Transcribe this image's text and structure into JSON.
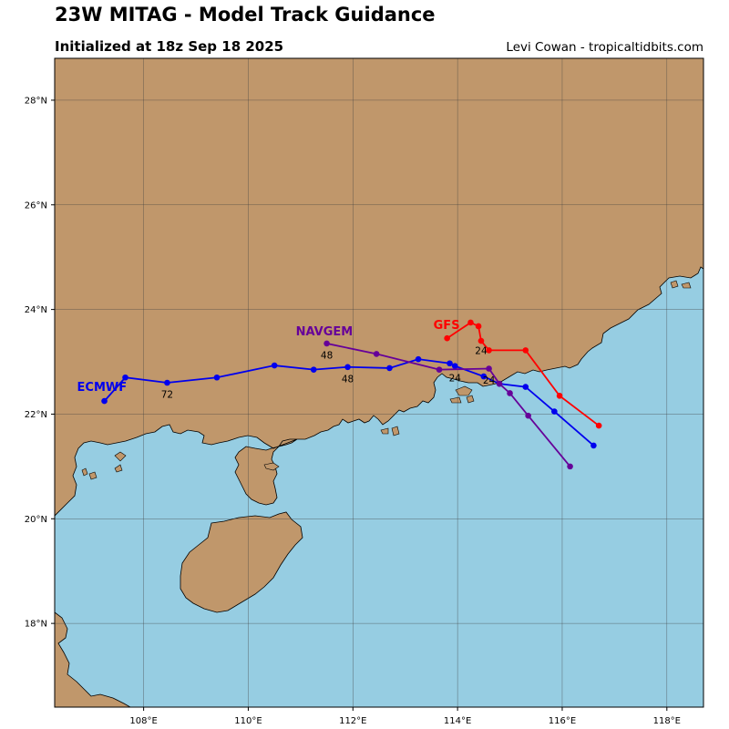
{
  "header": {
    "title": "23W MITAG - Model Track Guidance",
    "subtitle": "Initialized at 18z Sep 18 2025",
    "credit": "Levi Cowan - tropicaltidbits.com"
  },
  "map": {
    "lon_range": [
      106.3,
      118.7
    ],
    "lat_range": [
      16.4,
      28.8
    ],
    "lon_ticks": [
      {
        "value": 108,
        "label": "108°E"
      },
      {
        "value": 110,
        "label": "110°E"
      },
      {
        "value": 112,
        "label": "112°E"
      },
      {
        "value": 114,
        "label": "114°E"
      },
      {
        "value": 116,
        "label": "116°E"
      },
      {
        "value": 118,
        "label": "118°E"
      }
    ],
    "lat_ticks": [
      {
        "value": 18,
        "label": "18°N"
      },
      {
        "value": 20,
        "label": "20°N"
      },
      {
        "value": 22,
        "label": "22°N"
      },
      {
        "value": 24,
        "label": "24°N"
      },
      {
        "value": 26,
        "label": "26°N"
      },
      {
        "value": 28,
        "label": "28°N"
      }
    ],
    "colors": {
      "land": "#c0976b",
      "ocean": "#96cde2",
      "coast": "#000000",
      "grid": "#404040"
    }
  },
  "tracks": [
    {
      "model": "GFS",
      "color": "#ff0000",
      "points": [
        [
          116.7,
          21.78
        ],
        [
          115.95,
          22.35
        ],
        [
          115.3,
          23.22
        ],
        [
          114.6,
          23.22
        ],
        [
          114.45,
          23.4
        ],
        [
          114.4,
          23.68
        ],
        [
          114.25,
          23.75
        ],
        [
          113.8,
          23.45
        ]
      ],
      "hour_labels": [
        {
          "hour": "24",
          "lon": 114.45,
          "lat": 23.22
        }
      ]
    },
    {
      "model": "ECMWF",
      "color": "#0000ee",
      "points": [
        [
          116.6,
          21.4
        ],
        [
          115.85,
          22.05
        ],
        [
          115.3,
          22.52
        ],
        [
          114.8,
          22.58
        ],
        [
          114.5,
          22.72
        ],
        [
          113.95,
          22.92
        ],
        [
          113.85,
          22.97
        ],
        [
          113.25,
          23.05
        ],
        [
          112.7,
          22.88
        ],
        [
          111.9,
          22.9
        ],
        [
          111.25,
          22.85
        ],
        [
          110.5,
          22.93
        ],
        [
          109.4,
          22.7
        ],
        [
          108.45,
          22.6
        ],
        [
          107.65,
          22.7
        ],
        [
          107.25,
          22.25
        ]
      ],
      "hour_labels": [
        {
          "hour": "24",
          "lon": 113.95,
          "lat": 22.7
        },
        {
          "hour": "48",
          "lon": 111.9,
          "lat": 22.68
        },
        {
          "hour": "72",
          "lon": 108.45,
          "lat": 22.38
        }
      ]
    },
    {
      "model": "NAVGEM",
      "color": "#660099",
      "points": [
        [
          116.15,
          21.0
        ],
        [
          115.35,
          21.97
        ],
        [
          115.0,
          22.4
        ],
        [
          114.8,
          22.58
        ],
        [
          114.6,
          22.87
        ],
        [
          113.65,
          22.85
        ],
        [
          112.45,
          23.15
        ],
        [
          111.5,
          23.35
        ]
      ],
      "hour_labels": [
        {
          "hour": "24",
          "lon": 114.6,
          "lat": 22.65
        },
        {
          "hour": "48",
          "lon": 111.5,
          "lat": 23.13
        }
      ]
    }
  ]
}
